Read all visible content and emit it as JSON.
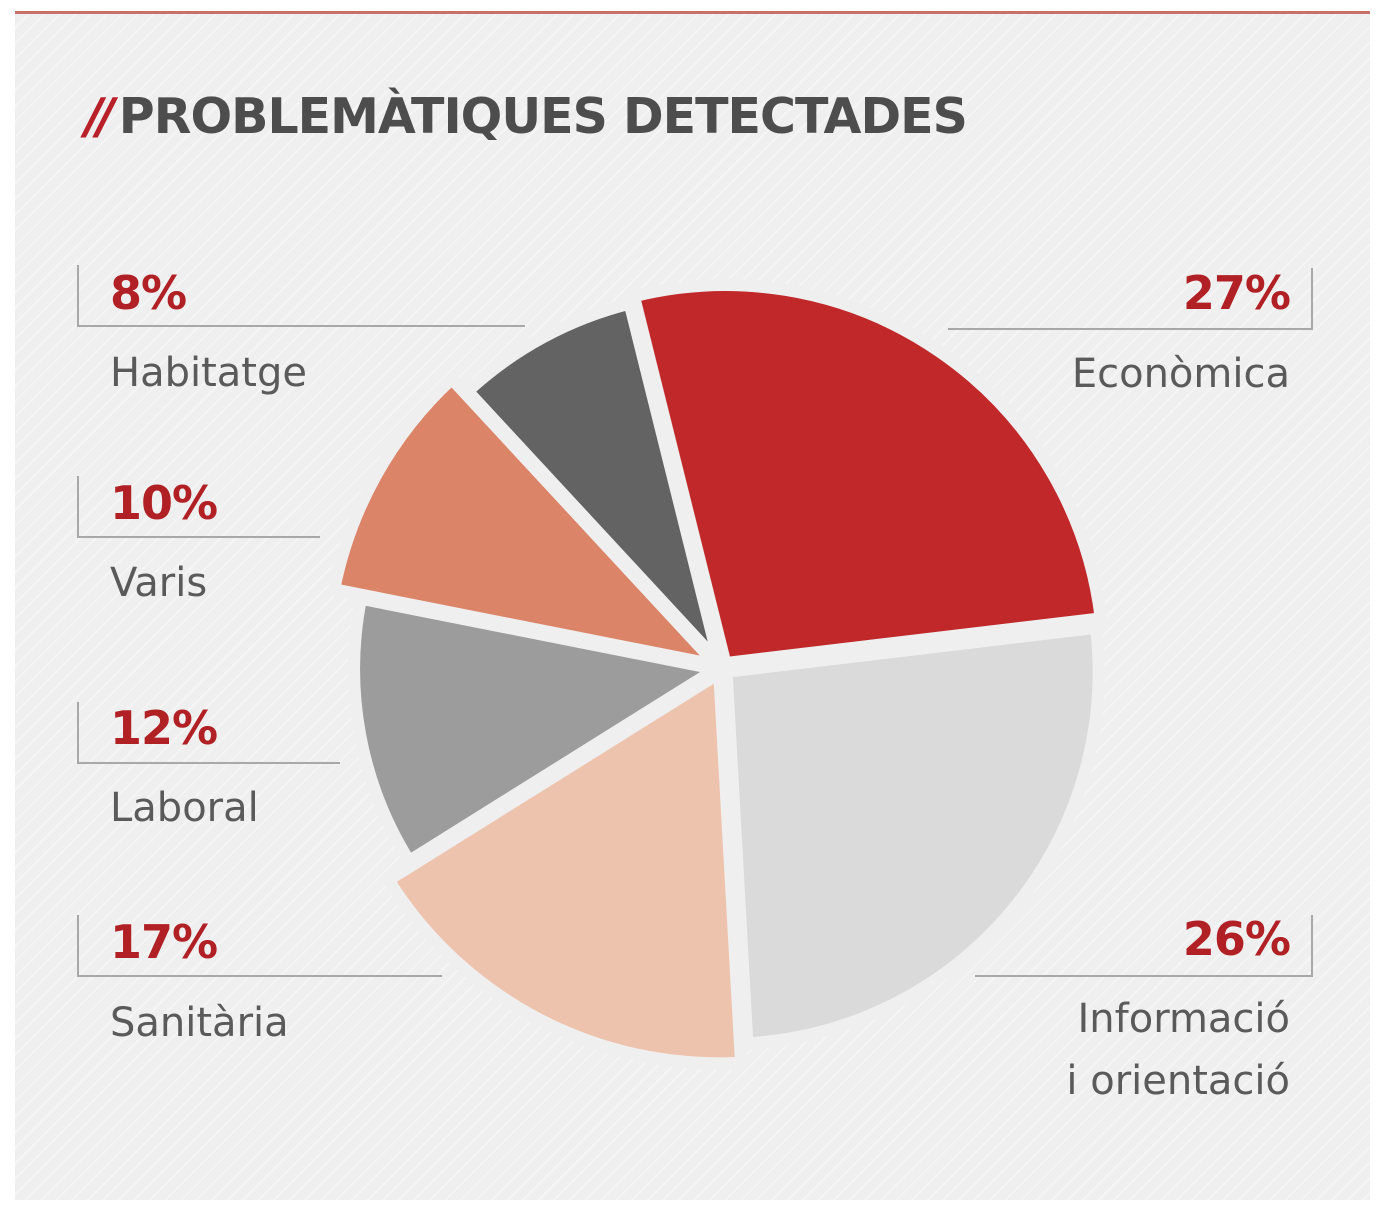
{
  "chart_data": {
    "type": "pie",
    "title": "PROBLEMÀTIQUES DETECTADES",
    "title_prefix": "//",
    "slices": [
      {
        "label": "Econòmica",
        "value": 27,
        "value_label": "27%",
        "color": "#c1282a"
      },
      {
        "label": "Informació i orientació",
        "label_lines": [
          "Informació",
          "i orientació"
        ],
        "value": 26,
        "value_label": "26%",
        "color": "#dadada"
      },
      {
        "label": "Sanitària",
        "value": 17,
        "value_label": "17%",
        "color": "#eec3ae"
      },
      {
        "label": "Laboral",
        "value": 12,
        "value_label": "12%",
        "color": "#9c9c9c"
      },
      {
        "label": "Varis",
        "value": 10,
        "value_label": "10%",
        "color": "#dc8467"
      },
      {
        "label": "Habitatge",
        "value": 8,
        "value_label": "8%",
        "color": "#636363"
      }
    ]
  }
}
